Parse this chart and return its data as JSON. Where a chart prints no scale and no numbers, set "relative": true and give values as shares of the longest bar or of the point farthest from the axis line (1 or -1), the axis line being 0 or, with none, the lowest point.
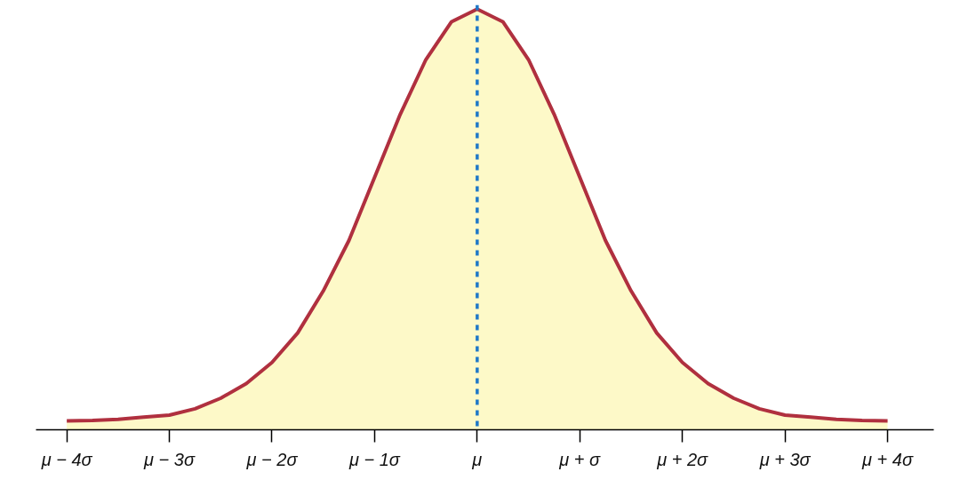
{
  "chart_data": {
    "type": "area",
    "relative": true,
    "grid": false,
    "tick_labels": "x",
    "x": [
      -4,
      -3.75,
      -3.5,
      -3.25,
      -3,
      -2.75,
      -2.5,
      -2.25,
      -2,
      -1.75,
      -1.5,
      -1.25,
      -1,
      -0.75,
      -0.5,
      -0.25,
      0,
      0.25,
      0.5,
      0.75,
      1,
      1.25,
      1.5,
      1.75,
      2,
      2.25,
      2.5,
      2.75,
      3,
      3.25,
      3.5,
      3.75,
      4
    ],
    "series": [
      {
        "color": "#b0303f",
        "values": [
          0.021,
          0.022,
          0.025,
          0.03,
          0.035,
          0.05,
          0.075,
          0.11,
          0.16,
          0.23,
          0.33,
          0.45,
          0.6,
          0.75,
          0.88,
          0.97,
          1,
          0.97,
          0.88,
          0.75,
          0.6,
          0.45,
          0.33,
          0.23,
          0.16,
          0.11,
          0.075,
          0.05,
          0.035,
          0.03,
          0.025,
          0.022,
          0.021
        ]
      }
    ],
    "xlim": [
      -4.3,
      4.45
    ],
    "xticks": [
      {
        "value": -4,
        "label": "μ − 4σ"
      },
      {
        "value": -3,
        "label": "μ − 3σ"
      },
      {
        "value": -2,
        "label": "μ − 2σ"
      },
      {
        "value": -1,
        "label": "μ − 1σ"
      },
      {
        "value": 0,
        "label": "μ"
      },
      {
        "value": 1,
        "label": "μ + σ"
      },
      {
        "value": 2,
        "label": "μ + 2σ"
      },
      {
        "value": 3,
        "label": "μ + 3σ"
      },
      {
        "value": 4,
        "label": "μ + 4σ"
      }
    ],
    "ref_lines": [
      {
        "axis": "x",
        "value": 0,
        "color": "#1f78c8",
        "line_style": "dashed"
      }
    ]
  }
}
